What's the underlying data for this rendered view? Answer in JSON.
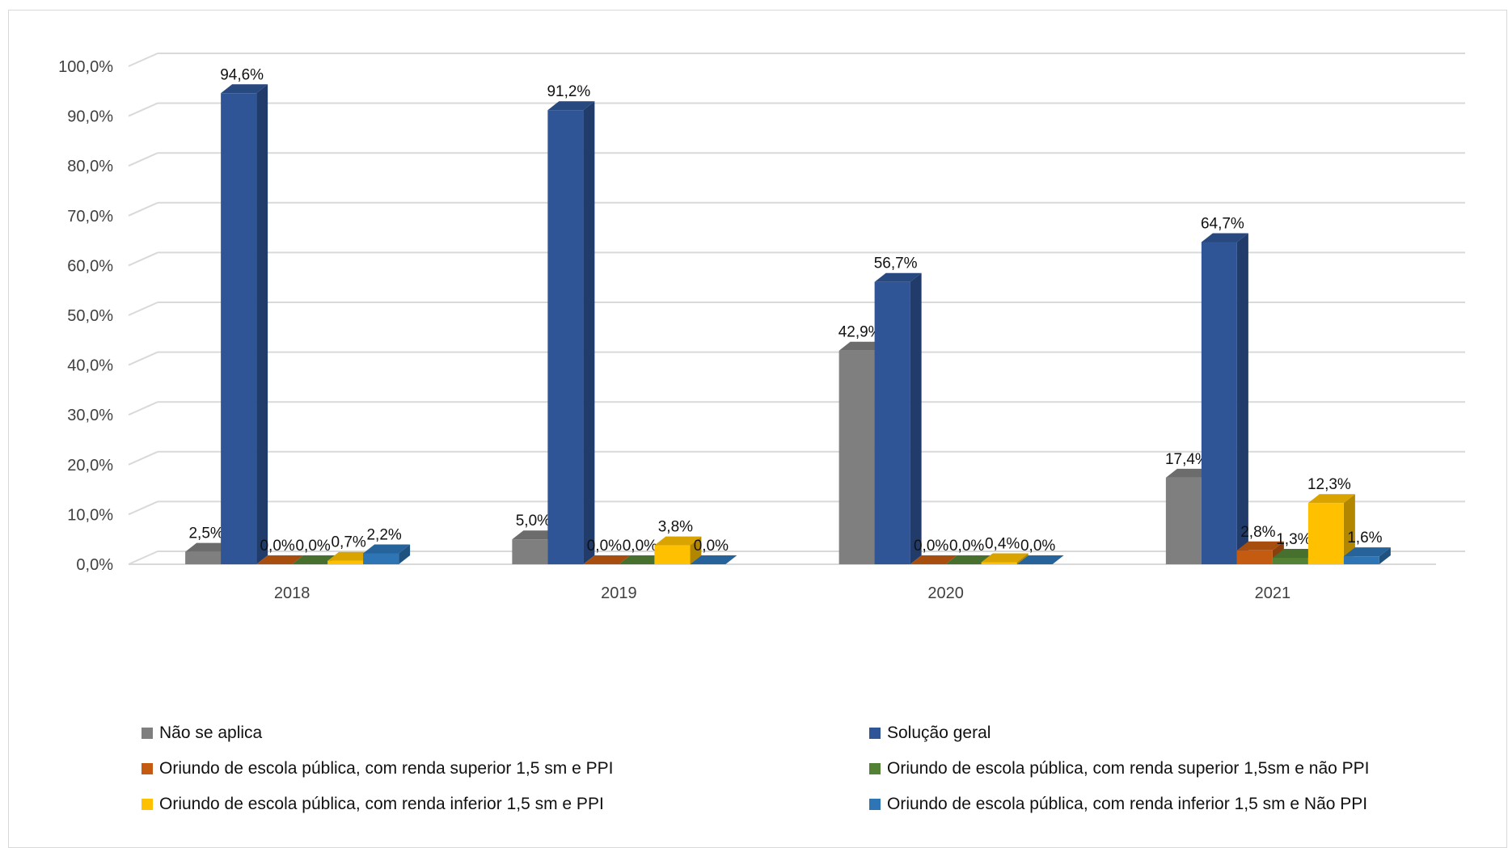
{
  "chart_data": {
    "type": "bar",
    "categories": [
      "2018",
      "2019",
      "2020",
      "2021"
    ],
    "ylim": [
      0,
      100
    ],
    "y_ticks": [
      "0,0%",
      "10,0%",
      "20,0%",
      "30,0%",
      "40,0%",
      "50,0%",
      "60,0%",
      "70,0%",
      "80,0%",
      "90,0%",
      "100,0%"
    ],
    "grid": true,
    "legend_position": "bottom",
    "series": [
      {
        "name": "Não se aplica",
        "color": "#7f7f7f",
        "values": [
          2.5,
          5.0,
          42.9,
          17.4
        ],
        "labels": [
          "2,5%",
          "5,0%",
          "42,9%",
          "17,4%"
        ]
      },
      {
        "name": "Solução geral",
        "color": "#2f5597",
        "values": [
          94.6,
          91.2,
          56.7,
          64.7
        ],
        "labels": [
          "94,6%",
          "91,2%",
          "56,7%",
          "64,7%"
        ]
      },
      {
        "name": "Oriundo de escola pública, com renda superior 1,5 sm e  PPI",
        "color": "#c55a11",
        "values": [
          0.0,
          0.0,
          0.0,
          2.8
        ],
        "labels": [
          "0,0%",
          "0,0%",
          "0,0%",
          "2,8%"
        ]
      },
      {
        "name": "Oriundo de escola pública, com renda superior 1,5sm e não PPI",
        "color": "#548235",
        "values": [
          0.0,
          0.0,
          0.0,
          1.3
        ],
        "labels": [
          "0,0%",
          "0,0%",
          "0,0%",
          "1,3%"
        ]
      },
      {
        "name": "Oriundo de escola pública, com renda inferior 1,5 sm e PPI",
        "color": "#ffc000",
        "values": [
          0.7,
          3.8,
          0.4,
          12.3
        ],
        "labels": [
          "0,7%",
          "3,8%",
          "0,4%",
          "12,3%"
        ]
      },
      {
        "name": "Oriundo de escola pública, com renda inferior 1,5 sm e Não PPI",
        "color": "#2e75b6",
        "values": [
          2.2,
          0.0,
          0.0,
          1.6
        ],
        "labels": [
          "2,2%",
          "0,0%",
          "0,0%",
          "1,6%"
        ]
      }
    ]
  }
}
